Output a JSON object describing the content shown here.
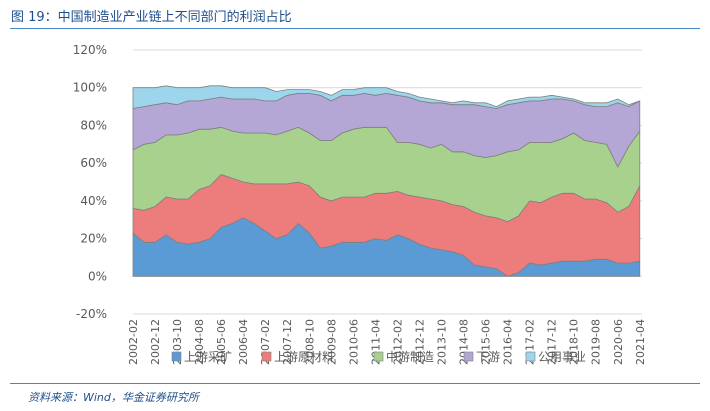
{
  "figure": {
    "title": "图 19：中国制造业产业链上不同部门的利润占比",
    "source": "资料来源：Wind，华金证券研究所"
  },
  "chart_data": {
    "type": "area",
    "stacked": true,
    "title": "",
    "xlabel": "",
    "ylabel": "",
    "ylim": [
      -0.2,
      1.2
    ],
    "y_ticks": [
      "-20%",
      "0%",
      "20%",
      "40%",
      "60%",
      "80%",
      "100%",
      "120%"
    ],
    "y_tick_values": [
      -0.2,
      0,
      0.2,
      0.4,
      0.6,
      0.8,
      1.0,
      1.2
    ],
    "x_tick_labels": [
      "2002-02",
      "2002-12",
      "2003-10",
      "2004-08",
      "2005-06",
      "2006-04",
      "2007-02",
      "2007-12",
      "2008-10",
      "2009-08",
      "2010-06",
      "2011-04",
      "2012-02",
      "2012-12",
      "2013-10",
      "2014-08",
      "2015-06",
      "2016-04",
      "2017-02",
      "2017-12",
      "2018-10",
      "2019-08",
      "2020-06",
      "2021-04"
    ],
    "grid": true,
    "legend_position": "bottom",
    "x": [
      "2002-02",
      "2002-07",
      "2002-12",
      "2003-05",
      "2003-10",
      "2004-03",
      "2004-08",
      "2005-01",
      "2005-06",
      "2005-11",
      "2006-04",
      "2006-09",
      "2007-02",
      "2007-07",
      "2007-12",
      "2008-05",
      "2008-10",
      "2009-03",
      "2009-08",
      "2010-01",
      "2010-06",
      "2010-11",
      "2011-04",
      "2011-09",
      "2012-02",
      "2012-07",
      "2012-12",
      "2013-05",
      "2013-10",
      "2014-03",
      "2014-08",
      "2015-01",
      "2015-06",
      "2015-11",
      "2016-04",
      "2016-09",
      "2017-02",
      "2017-07",
      "2017-12",
      "2018-05",
      "2018-10",
      "2019-03",
      "2019-08",
      "2020-01",
      "2020-06",
      "2020-11",
      "2021-04"
    ],
    "series": [
      {
        "name": "上游采矿",
        "color": "#5b9bd5",
        "values": [
          0.23,
          0.18,
          0.18,
          0.22,
          0.18,
          0.17,
          0.18,
          0.2,
          0.26,
          0.28,
          0.31,
          0.28,
          0.24,
          0.2,
          0.22,
          0.28,
          0.23,
          0.15,
          0.16,
          0.18,
          0.18,
          0.18,
          0.2,
          0.19,
          0.22,
          0.2,
          0.17,
          0.15,
          0.14,
          0.13,
          0.11,
          0.06,
          0.05,
          0.04,
          0.0,
          0.02,
          0.07,
          0.06,
          0.07,
          0.08,
          0.08,
          0.08,
          0.09,
          0.09,
          0.07,
          0.07,
          0.08
        ]
      },
      {
        "name": "上游原材料",
        "color": "#ed7d7d",
        "values": [
          0.13,
          0.17,
          0.19,
          0.2,
          0.23,
          0.24,
          0.28,
          0.28,
          0.28,
          0.24,
          0.19,
          0.21,
          0.25,
          0.29,
          0.27,
          0.22,
          0.25,
          0.27,
          0.24,
          0.24,
          0.24,
          0.24,
          0.24,
          0.25,
          0.23,
          0.23,
          0.25,
          0.26,
          0.26,
          0.25,
          0.26,
          0.28,
          0.27,
          0.27,
          0.29,
          0.3,
          0.33,
          0.33,
          0.35,
          0.36,
          0.36,
          0.33,
          0.32,
          0.3,
          0.27,
          0.3,
          0.4
        ]
      },
      {
        "name": "中游制造",
        "color": "#a9d18e",
        "values": [
          0.31,
          0.35,
          0.34,
          0.33,
          0.34,
          0.35,
          0.32,
          0.3,
          0.25,
          0.25,
          0.26,
          0.27,
          0.27,
          0.26,
          0.28,
          0.29,
          0.28,
          0.3,
          0.32,
          0.34,
          0.36,
          0.37,
          0.35,
          0.35,
          0.26,
          0.28,
          0.28,
          0.27,
          0.3,
          0.28,
          0.29,
          0.3,
          0.31,
          0.33,
          0.37,
          0.35,
          0.31,
          0.32,
          0.29,
          0.29,
          0.32,
          0.31,
          0.3,
          0.31,
          0.24,
          0.32,
          0.29
        ]
      },
      {
        "name": "下游",
        "color": "#b4a7d6",
        "values": [
          0.22,
          0.2,
          0.2,
          0.17,
          0.16,
          0.17,
          0.15,
          0.16,
          0.16,
          0.17,
          0.18,
          0.18,
          0.17,
          0.18,
          0.19,
          0.18,
          0.21,
          0.24,
          0.21,
          0.2,
          0.18,
          0.18,
          0.17,
          0.18,
          0.25,
          0.24,
          0.23,
          0.24,
          0.22,
          0.25,
          0.25,
          0.27,
          0.27,
          0.25,
          0.25,
          0.25,
          0.22,
          0.22,
          0.23,
          0.21,
          0.17,
          0.19,
          0.19,
          0.2,
          0.34,
          0.21,
          0.16
        ]
      },
      {
        "name": "公用事业",
        "color": "#9dd6ec",
        "values": [
          0.11,
          0.1,
          0.09,
          0.09,
          0.09,
          0.07,
          0.07,
          0.07,
          0.06,
          0.06,
          0.06,
          0.06,
          0.07,
          0.05,
          0.03,
          0.02,
          0.02,
          0.02,
          0.03,
          0.03,
          0.03,
          0.03,
          0.04,
          0.03,
          0.02,
          0.02,
          0.02,
          0.02,
          0.01,
          0.01,
          0.02,
          0.01,
          0.02,
          0.01,
          0.02,
          0.02,
          0.02,
          0.02,
          0.02,
          0.01,
          0.01,
          0.01,
          0.02,
          0.02,
          0.02,
          0.01,
          0.0
        ]
      }
    ]
  }
}
